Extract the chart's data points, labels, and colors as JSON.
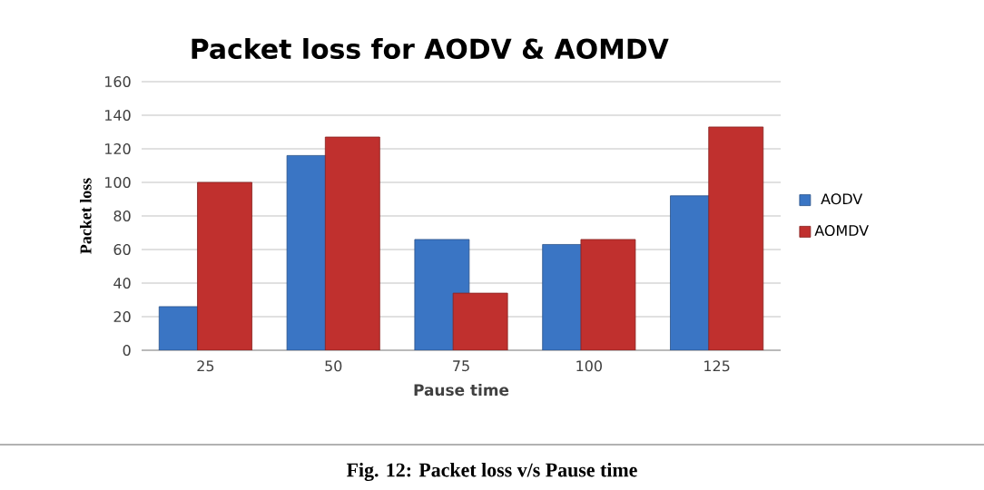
{
  "chart_data": {
    "type": "bar",
    "title": "Packet loss for AODV & AOMDV",
    "categories": [
      "25",
      "50",
      "75",
      "100",
      "125"
    ],
    "series": [
      {
        "name": "AODV",
        "color": "#3a75c4",
        "values": [
          26,
          116,
          66,
          63,
          92
        ]
      },
      {
        "name": "AOMDV",
        "color": "#c0302e",
        "values": [
          100,
          127,
          34,
          66,
          133
        ]
      }
    ],
    "xlabel": "Pause time",
    "ylabel": "Packet loss",
    "ylim": [
      0,
      160
    ],
    "yticks": [
      0,
      20,
      40,
      60,
      80,
      100,
      120,
      140,
      160
    ],
    "grid": "y",
    "legend": "right",
    "annotations": [
      "Fig. 12: Packet loss v/s Pause time"
    ]
  }
}
